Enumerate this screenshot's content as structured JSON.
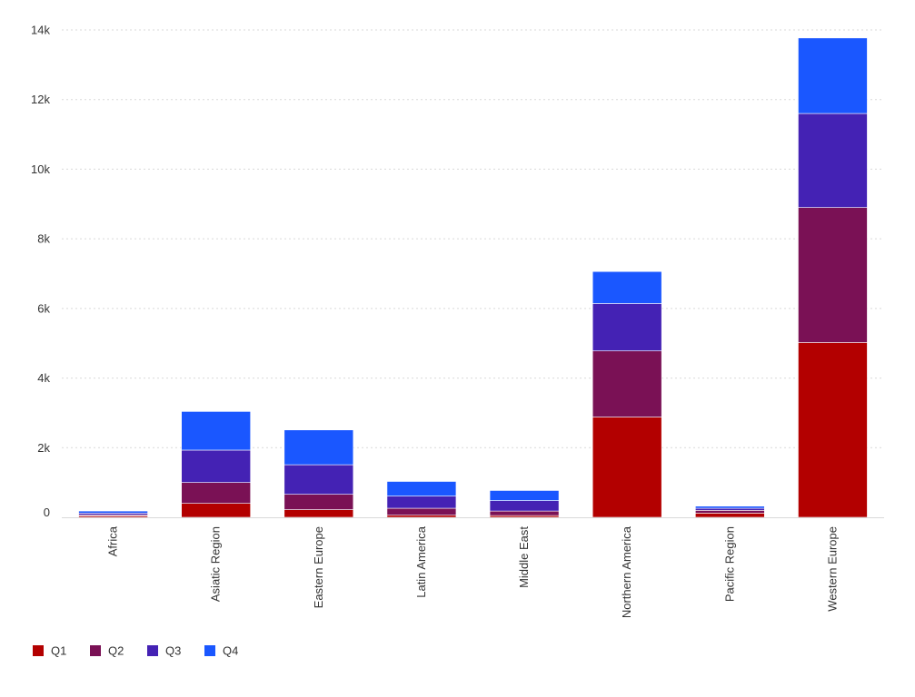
{
  "chart_data": {
    "type": "bar",
    "stacked": true,
    "categories": [
      "Africa",
      "Asiatic Region",
      "Eastern Europe",
      "Latin America",
      "Middle East",
      "Northern America",
      "Pacific Region",
      "Western Europe"
    ],
    "series": [
      {
        "name": "Q1",
        "color": "#b30000",
        "values": [
          40,
          400,
          220,
          60,
          50,
          2880,
          120,
          5020
        ]
      },
      {
        "name": "Q2",
        "color": "#7a1155",
        "values": [
          30,
          600,
          440,
          200,
          130,
          1900,
          80,
          3880
        ]
      },
      {
        "name": "Q3",
        "color": "#4422b4",
        "values": [
          50,
          930,
          850,
          350,
          300,
          1360,
          60,
          2700
        ]
      },
      {
        "name": "Q4",
        "color": "#1a57ff",
        "values": [
          60,
          1110,
          1000,
          420,
          290,
          920,
          60,
          2170
        ]
      }
    ],
    "y_ticks": [
      {
        "value": 0,
        "label": "0"
      },
      {
        "value": 2000,
        "label": "2k"
      },
      {
        "value": 4000,
        "label": "4k"
      },
      {
        "value": 6000,
        "label": "6k"
      },
      {
        "value": 8000,
        "label": "8k"
      },
      {
        "value": 10000,
        "label": "10k"
      },
      {
        "value": 12000,
        "label": "12k"
      },
      {
        "value": 14000,
        "label": "14k"
      }
    ],
    "ylim": [
      0,
      14000
    ],
    "grid": true,
    "legend_position": "bottom-left",
    "title": "",
    "xlabel": "",
    "ylabel": ""
  }
}
